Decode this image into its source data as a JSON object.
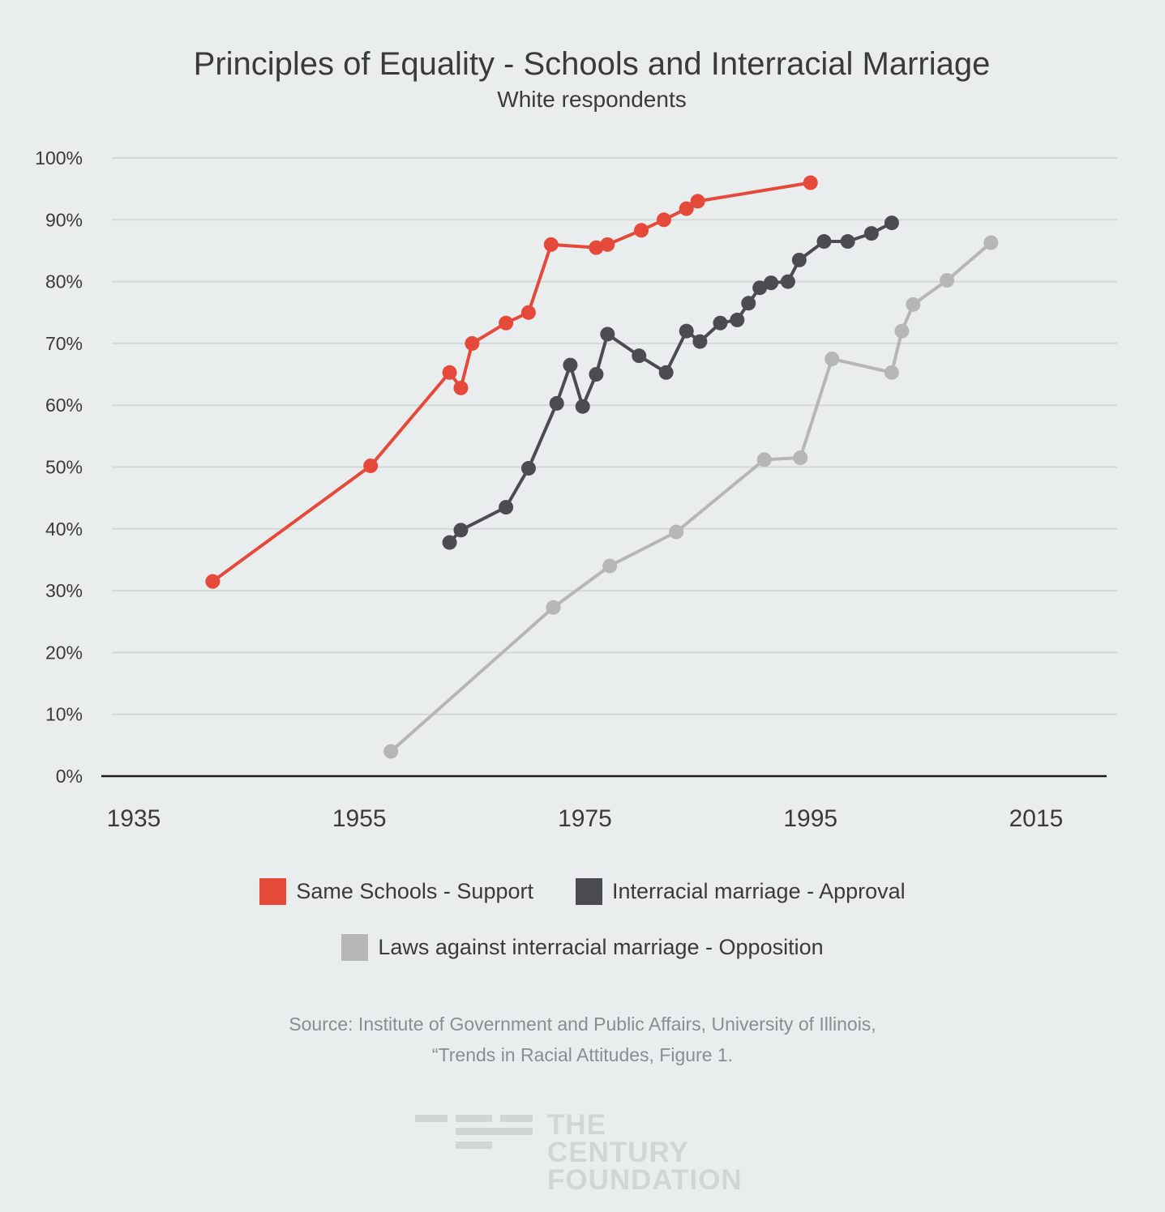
{
  "chart_data": {
    "type": "line",
    "title": "Principles of Equality - Schools and Interracial Marriage",
    "subtitle": "White respondents",
    "xlabel": "",
    "ylabel": "",
    "xlim": [
      1935,
      2020
    ],
    "ylim": [
      0,
      100
    ],
    "x_ticks": [
      "1935",
      "1955",
      "1975",
      "1995",
      "2015"
    ],
    "y_ticks": [
      "0%",
      "10%",
      "20%",
      "30%",
      "40%",
      "50%",
      "60%",
      "70%",
      "80%",
      "90%",
      "100%"
    ],
    "grid": true,
    "legend_position": "bottom",
    "series": [
      {
        "name": "Same Schools - Support",
        "color": "#e5493a",
        "points": [
          [
            1942,
            31.5
          ],
          [
            1956,
            50.2
          ],
          [
            1963,
            65.3
          ],
          [
            1964,
            62.8
          ],
          [
            1965,
            70
          ],
          [
            1968,
            73.3
          ],
          [
            1970,
            75
          ],
          [
            1972,
            86
          ],
          [
            1976,
            85.5
          ],
          [
            1977,
            86
          ],
          [
            1980,
            88.3
          ],
          [
            1982,
            90
          ],
          [
            1984,
            91.8
          ],
          [
            1985,
            93
          ],
          [
            1995,
            96
          ]
        ]
      },
      {
        "name": "Interracial marriage - Approval",
        "color": "#4b4c52",
        "points": [
          [
            1963,
            37.8
          ],
          [
            1964,
            39.8
          ],
          [
            1968,
            43.5
          ],
          [
            1970,
            49.8
          ],
          [
            1972.5,
            60.3
          ],
          [
            1973.7,
            66.5
          ],
          [
            1974.8,
            59.8
          ],
          [
            1976,
            65
          ],
          [
            1977,
            71.5
          ],
          [
            1979.8,
            68
          ],
          [
            1982.2,
            65.3
          ],
          [
            1984,
            72
          ],
          [
            1985.2,
            70.3
          ],
          [
            1987,
            73.3
          ],
          [
            1988.5,
            73.8
          ],
          [
            1989.5,
            76.5
          ],
          [
            1990.5,
            79
          ],
          [
            1991.5,
            79.8
          ],
          [
            1993,
            80
          ],
          [
            1994,
            83.5
          ],
          [
            1996.2,
            86.5
          ],
          [
            1998.3,
            86.5
          ],
          [
            2000.4,
            87.8
          ],
          [
            2002.2,
            89.5
          ]
        ]
      },
      {
        "name": "Laws against interracial marriage - Opposition",
        "color": "#b5b6b7",
        "points": [
          [
            1957.8,
            4
          ],
          [
            1972.2,
            27.3
          ],
          [
            1977.2,
            34
          ],
          [
            1983.1,
            39.5
          ],
          [
            1990.9,
            51.2
          ],
          [
            1994.1,
            51.5
          ],
          [
            1996.9,
            67.5
          ],
          [
            2002.2,
            65.3
          ],
          [
            2003.1,
            72
          ],
          [
            2004.1,
            76.3
          ],
          [
            2007.1,
            80.2
          ],
          [
            2011,
            86.3
          ]
        ]
      }
    ]
  },
  "legend": {
    "item1": "Same Schools - Support",
    "item2": "Interracial marriage - Approval",
    "item3": "Laws against interracial marriage - Opposition"
  },
  "source": {
    "line1": "Source: Institute of Government and Public Affairs, University of Illinois,",
    "line2": "“Trends in Racial Attitudes, Figure 1."
  },
  "logo": {
    "line1": "THE CENTURY",
    "line2": "FOUNDATION"
  }
}
